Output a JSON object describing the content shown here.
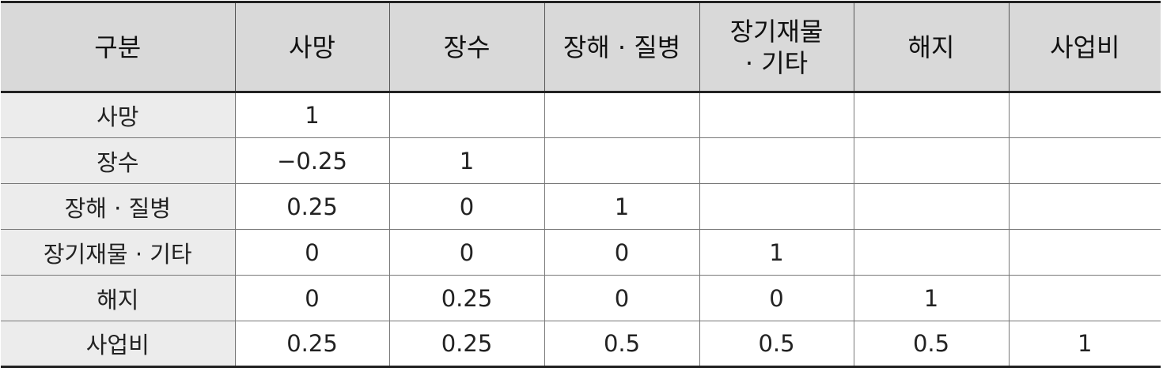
{
  "table": {
    "headers": [
      "구분",
      "사망",
      "장수",
      "장해 · 질병",
      [
        "장기재물",
        "· 기타"
      ],
      "해지",
      "사업비"
    ],
    "rows": [
      {
        "label": "사망",
        "cells": [
          "1",
          "",
          "",
          "",
          "",
          ""
        ]
      },
      {
        "label": "장수",
        "cells": [
          "−0.25",
          "1",
          "",
          "",
          "",
          ""
        ]
      },
      {
        "label": "장해 · 질병",
        "cells": [
          "0.25",
          "0",
          "1",
          "",
          "",
          ""
        ]
      },
      {
        "label": "장기재물 · 기타",
        "cells": [
          "0",
          "0",
          "0",
          "1",
          "",
          ""
        ]
      },
      {
        "label": "해지",
        "cells": [
          "0",
          "0.25",
          "0",
          "0",
          "1",
          ""
        ]
      },
      {
        "label": "사업비",
        "cells": [
          "0.25",
          "0.25",
          "0.5",
          "0.5",
          "0.5",
          "1"
        ]
      }
    ]
  }
}
